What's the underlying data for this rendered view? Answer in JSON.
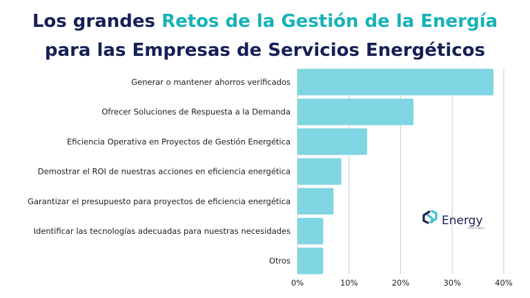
{
  "title": {
    "line1_part1": "Los grandes ",
    "line1_part2": "Retos de la Gestión de la Energía",
    "line2": "para las Empresas de Servicios Energéticos"
  },
  "colors": {
    "title": "#152056",
    "title_accent": "#16b2b7",
    "bar": "#7fd5e1",
    "grid": "#c9c9c9",
    "logo_dark": "#152056",
    "logo_light": "#3cc0cf"
  },
  "logo": {
    "name": "Energy",
    "sub": "SPACEWELL",
    "icon": "energy-spacewell-logo-icon"
  },
  "chart_data": {
    "type": "bar",
    "orientation": "horizontal",
    "categories": [
      "Generar o mantener ahorros verificados",
      "Ofrecer Soluciones de Respuesta a la Demanda",
      "Eficiencia Operativa en Proyectos de Gestión Energética",
      "Demostrar el ROI de nuestras acciones en eficiencia energética",
      "Garantizar el presupuesto para proyectos de eficiencia energética",
      "Identificar las tecnologías adecuadas para nuestras necesidades",
      "Otros"
    ],
    "values": [
      38,
      22.5,
      13.5,
      8.5,
      7,
      5,
      5
    ],
    "xlim": [
      0,
      40
    ],
    "xticks": [
      0,
      10,
      20,
      30,
      40
    ],
    "xtick_labels": [
      "0%",
      "10%",
      "20%",
      "30%",
      "40%"
    ],
    "grid": "vertical",
    "xlabel": "",
    "ylabel": ""
  }
}
